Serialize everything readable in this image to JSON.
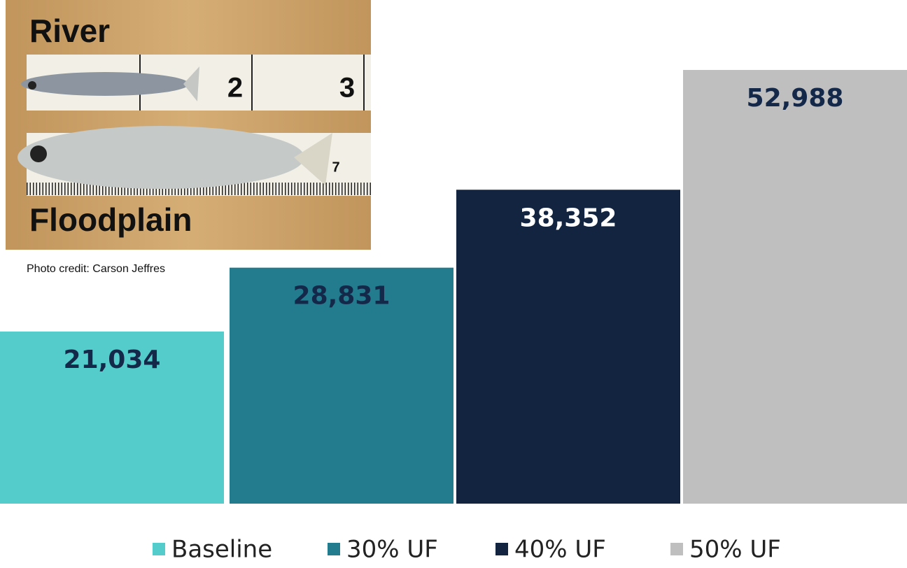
{
  "chart_data": {
    "type": "bar",
    "categories": [
      "Baseline",
      "30% UF",
      "40% UF",
      "50% UF"
    ],
    "values": [
      21034,
      28831,
      38352,
      52988
    ],
    "value_labels": [
      "21,034",
      "28,831",
      "38,352",
      "52,988"
    ],
    "colors": [
      "#55cccc",
      "#237c8e",
      "#12243f",
      "#bfbfbf"
    ],
    "label_colors": [
      "#14284a",
      "#14284a",
      "#ffffff",
      "#14284a"
    ],
    "legend": "bottom"
  },
  "photo": {
    "top_label": "River",
    "bottom_label": "Floodplain",
    "ruler_labels": [
      "2",
      "3",
      "7"
    ],
    "credit": "Photo credit: Carson Jeffres"
  }
}
